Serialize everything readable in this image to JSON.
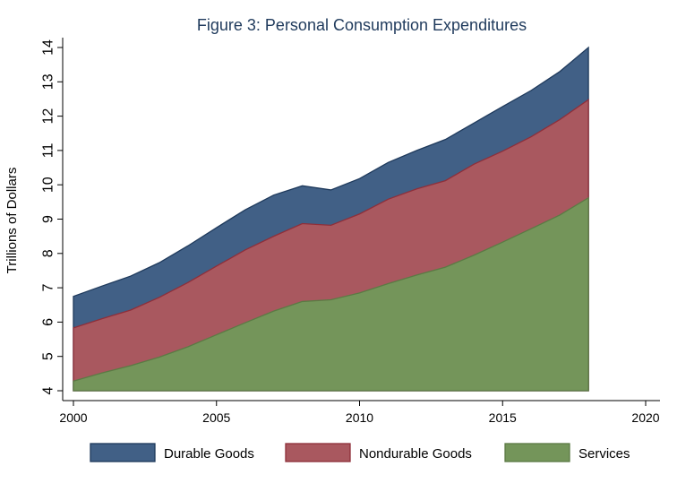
{
  "chart_data": {
    "type": "area",
    "stacked": true,
    "title": "Figure 3: Personal Consumption Expenditures",
    "xlabel": "",
    "ylabel": "Trillions of Dollars",
    "xlim": [
      2000,
      2020
    ],
    "ylim": [
      4,
      14
    ],
    "x_ticks": [
      "2000",
      "2005",
      "2010",
      "2015",
      "2020"
    ],
    "y_ticks": [
      "4",
      "5",
      "6",
      "7",
      "8",
      "9",
      "10",
      "11",
      "12",
      "13",
      "14"
    ],
    "grid": false,
    "legend_position": "bottom",
    "x": [
      2000,
      2001,
      2002,
      2003,
      2004,
      2005,
      2006,
      2007,
      2008,
      2009,
      2010,
      2011,
      2012,
      2013,
      2014,
      2015,
      2016,
      2017,
      2018
    ],
    "series": [
      {
        "name": "Services",
        "color": "#74955a",
        "edge": "#5b7a44",
        "values": [
          4.28,
          4.52,
          4.73,
          4.98,
          5.28,
          5.63,
          5.98,
          6.32,
          6.6,
          6.65,
          6.85,
          7.12,
          7.37,
          7.6,
          7.95,
          8.33,
          8.72,
          9.12,
          9.62
        ]
      },
      {
        "name": "Nondurable Goods",
        "color": "#a9585f",
        "edge": "#8e2f3a",
        "values": [
          5.83,
          6.1,
          6.35,
          6.72,
          7.15,
          7.63,
          8.1,
          8.5,
          8.87,
          8.82,
          9.15,
          9.58,
          9.88,
          10.12,
          10.6,
          10.98,
          11.4,
          11.9,
          12.48
        ]
      },
      {
        "name": "Durable Goods",
        "color": "#416086",
        "edge": "#1f3a5c",
        "values": [
          6.75,
          7.05,
          7.34,
          7.73,
          8.22,
          8.75,
          9.27,
          9.7,
          9.97,
          9.85,
          10.18,
          10.65,
          11.0,
          11.32,
          11.8,
          12.28,
          12.75,
          13.3,
          14.0
        ]
      }
    ],
    "legend": [
      {
        "label": "Durable Goods",
        "color": "#416086",
        "edge": "#1f3a5c"
      },
      {
        "label": "Nondurable Goods",
        "color": "#a9585f",
        "edge": "#8e2f3a"
      },
      {
        "label": "Services",
        "color": "#74955a",
        "edge": "#5b7a44"
      }
    ]
  }
}
